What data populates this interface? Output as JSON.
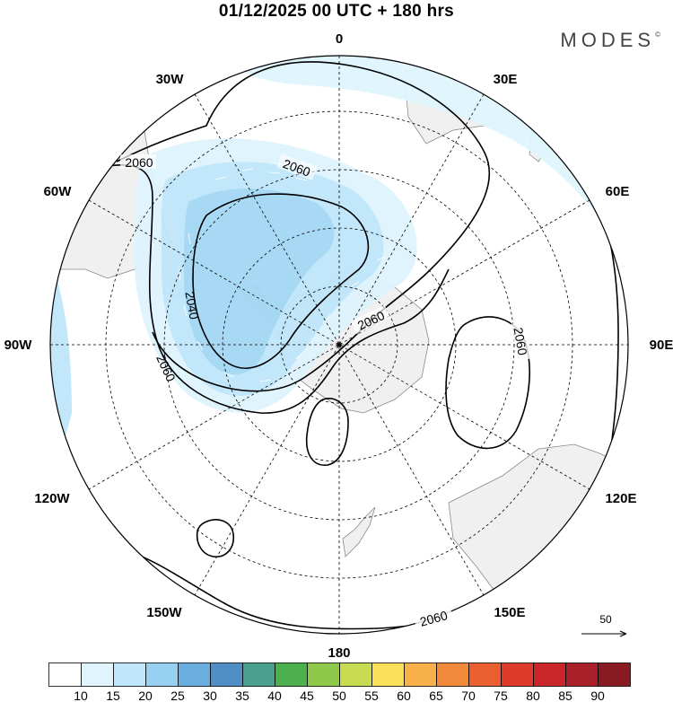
{
  "title": "01/12/2025  00 UTC  + 180 hrs",
  "brand": "MODES",
  "brand_mark": "©",
  "map": {
    "projection": "polar stereographic, south pole",
    "longitude_labels": [
      "0",
      "30E",
      "60E",
      "90E",
      "120E",
      "150E",
      "180",
      "150W",
      "120W",
      "90W",
      "60W",
      "30W"
    ],
    "contour_labels": [
      "2060",
      "2060",
      "2040",
      "2060",
      "2060",
      "2060",
      "2060"
    ],
    "vector_reference": "50",
    "colors": {
      "land": "#f0f0f0",
      "coast": "#8a8a8a",
      "wind_10_15": "#dff4fd",
      "wind_15_20": "#bfe6fa",
      "wind_20_25": "#97d0f1",
      "grid": "#000000"
    }
  },
  "colorbar": {
    "labels": [
      "10",
      "15",
      "20",
      "25",
      "30",
      "35",
      "40",
      "45",
      "50",
      "55",
      "60",
      "65",
      "70",
      "75",
      "80",
      "85",
      "90"
    ],
    "colors": [
      "#ffffff",
      "#dff4fd",
      "#bfe6fa",
      "#97d0f1",
      "#6aaee0",
      "#4f8fc6",
      "#49a08e",
      "#4cb04f",
      "#8fc94a",
      "#c8dc52",
      "#fbe15a",
      "#f7b04a",
      "#f18a3a",
      "#ea5f2f",
      "#de3b2c",
      "#c82628",
      "#a91f28",
      "#8a1a22"
    ]
  }
}
